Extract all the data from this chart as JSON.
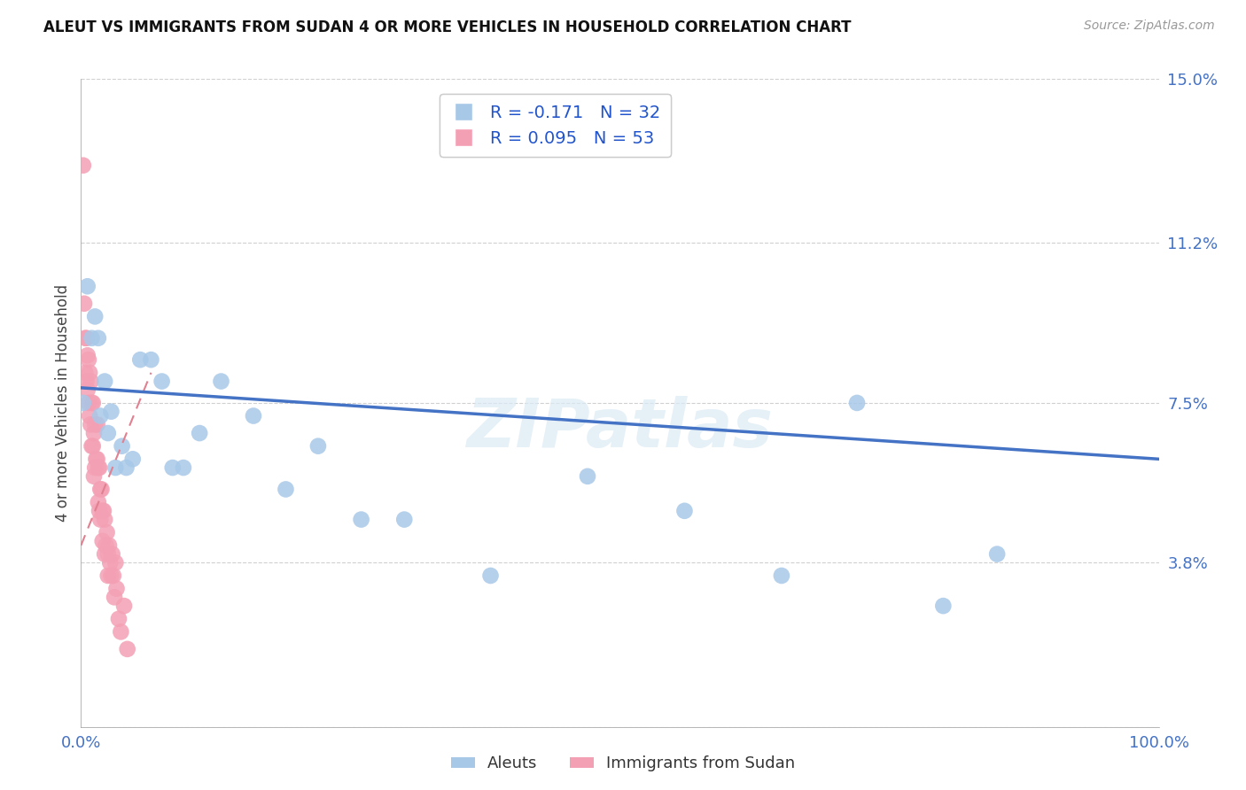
{
  "title": "ALEUT VS IMMIGRANTS FROM SUDAN 4 OR MORE VEHICLES IN HOUSEHOLD CORRELATION CHART",
  "source": "Source: ZipAtlas.com",
  "ylabel": "4 or more Vehicles in Household",
  "legend_label_1": "Aleuts",
  "legend_label_2": "Immigrants from Sudan",
  "r_aleut": -0.171,
  "n_aleut": 32,
  "r_sudan": 0.095,
  "n_sudan": 53,
  "xlim": [
    0,
    1.0
  ],
  "ylim": [
    0,
    0.15
  ],
  "xticks": [
    0.0,
    0.1,
    0.2,
    0.3,
    0.4,
    0.5,
    0.6,
    0.7,
    0.8,
    0.9,
    1.0
  ],
  "xticklabels": [
    "0.0%",
    "",
    "",
    "",
    "",
    "",
    "",
    "",
    "",
    "",
    "100.0%"
  ],
  "yticks": [
    0.0,
    0.038,
    0.075,
    0.112,
    0.15
  ],
  "yticklabels": [
    "",
    "3.8%",
    "7.5%",
    "11.2%",
    "15.0%"
  ],
  "color_aleut": "#a8c8e8",
  "color_sudan": "#f4a0b4",
  "trendline_aleut_color": "#4472c4",
  "trendline_sudan_color": "#e08090",
  "background_color": "#ffffff",
  "grid_color": "#d0d0d0",
  "watermark": "ZIPatlas",
  "aleut_x": [
    0.002,
    0.006,
    0.01,
    0.013,
    0.016,
    0.018,
    0.022,
    0.025,
    0.028,
    0.032,
    0.038,
    0.042,
    0.048,
    0.055,
    0.065,
    0.075,
    0.085,
    0.095,
    0.11,
    0.13,
    0.16,
    0.19,
    0.22,
    0.26,
    0.3,
    0.38,
    0.47,
    0.56,
    0.65,
    0.72,
    0.8,
    0.85
  ],
  "aleut_y": [
    0.075,
    0.102,
    0.09,
    0.095,
    0.09,
    0.072,
    0.08,
    0.068,
    0.073,
    0.06,
    0.065,
    0.06,
    0.062,
    0.085,
    0.085,
    0.08,
    0.06,
    0.06,
    0.068,
    0.08,
    0.072,
    0.055,
    0.065,
    0.048,
    0.048,
    0.035,
    0.058,
    0.05,
    0.035,
    0.075,
    0.028,
    0.04
  ],
  "sudan_x": [
    0.002,
    0.003,
    0.004,
    0.004,
    0.005,
    0.005,
    0.006,
    0.006,
    0.007,
    0.007,
    0.008,
    0.008,
    0.009,
    0.009,
    0.01,
    0.01,
    0.011,
    0.011,
    0.012,
    0.012,
    0.013,
    0.013,
    0.014,
    0.015,
    0.015,
    0.016,
    0.016,
    0.017,
    0.017,
    0.018,
    0.018,
    0.019,
    0.02,
    0.02,
    0.021,
    0.022,
    0.022,
    0.023,
    0.024,
    0.025,
    0.025,
    0.026,
    0.027,
    0.028,
    0.029,
    0.03,
    0.031,
    0.032,
    0.033,
    0.035,
    0.037,
    0.04,
    0.043
  ],
  "sudan_y": [
    0.13,
    0.098,
    0.09,
    0.082,
    0.09,
    0.08,
    0.086,
    0.078,
    0.085,
    0.075,
    0.082,
    0.072,
    0.08,
    0.07,
    0.075,
    0.065,
    0.075,
    0.065,
    0.068,
    0.058,
    0.07,
    0.06,
    0.062,
    0.07,
    0.062,
    0.06,
    0.052,
    0.06,
    0.05,
    0.055,
    0.048,
    0.055,
    0.05,
    0.043,
    0.05,
    0.048,
    0.04,
    0.042,
    0.045,
    0.04,
    0.035,
    0.042,
    0.038,
    0.035,
    0.04,
    0.035,
    0.03,
    0.038,
    0.032,
    0.025,
    0.022,
    0.028,
    0.018
  ],
  "trendline_aleut_x0": 0.0,
  "trendline_aleut_y0": 0.0785,
  "trendline_aleut_x1": 1.0,
  "trendline_aleut_y1": 0.062,
  "trendline_sudan_x0": 0.0,
  "trendline_sudan_y0": 0.042,
  "trendline_sudan_x1": 0.065,
  "trendline_sudan_y1": 0.082
}
